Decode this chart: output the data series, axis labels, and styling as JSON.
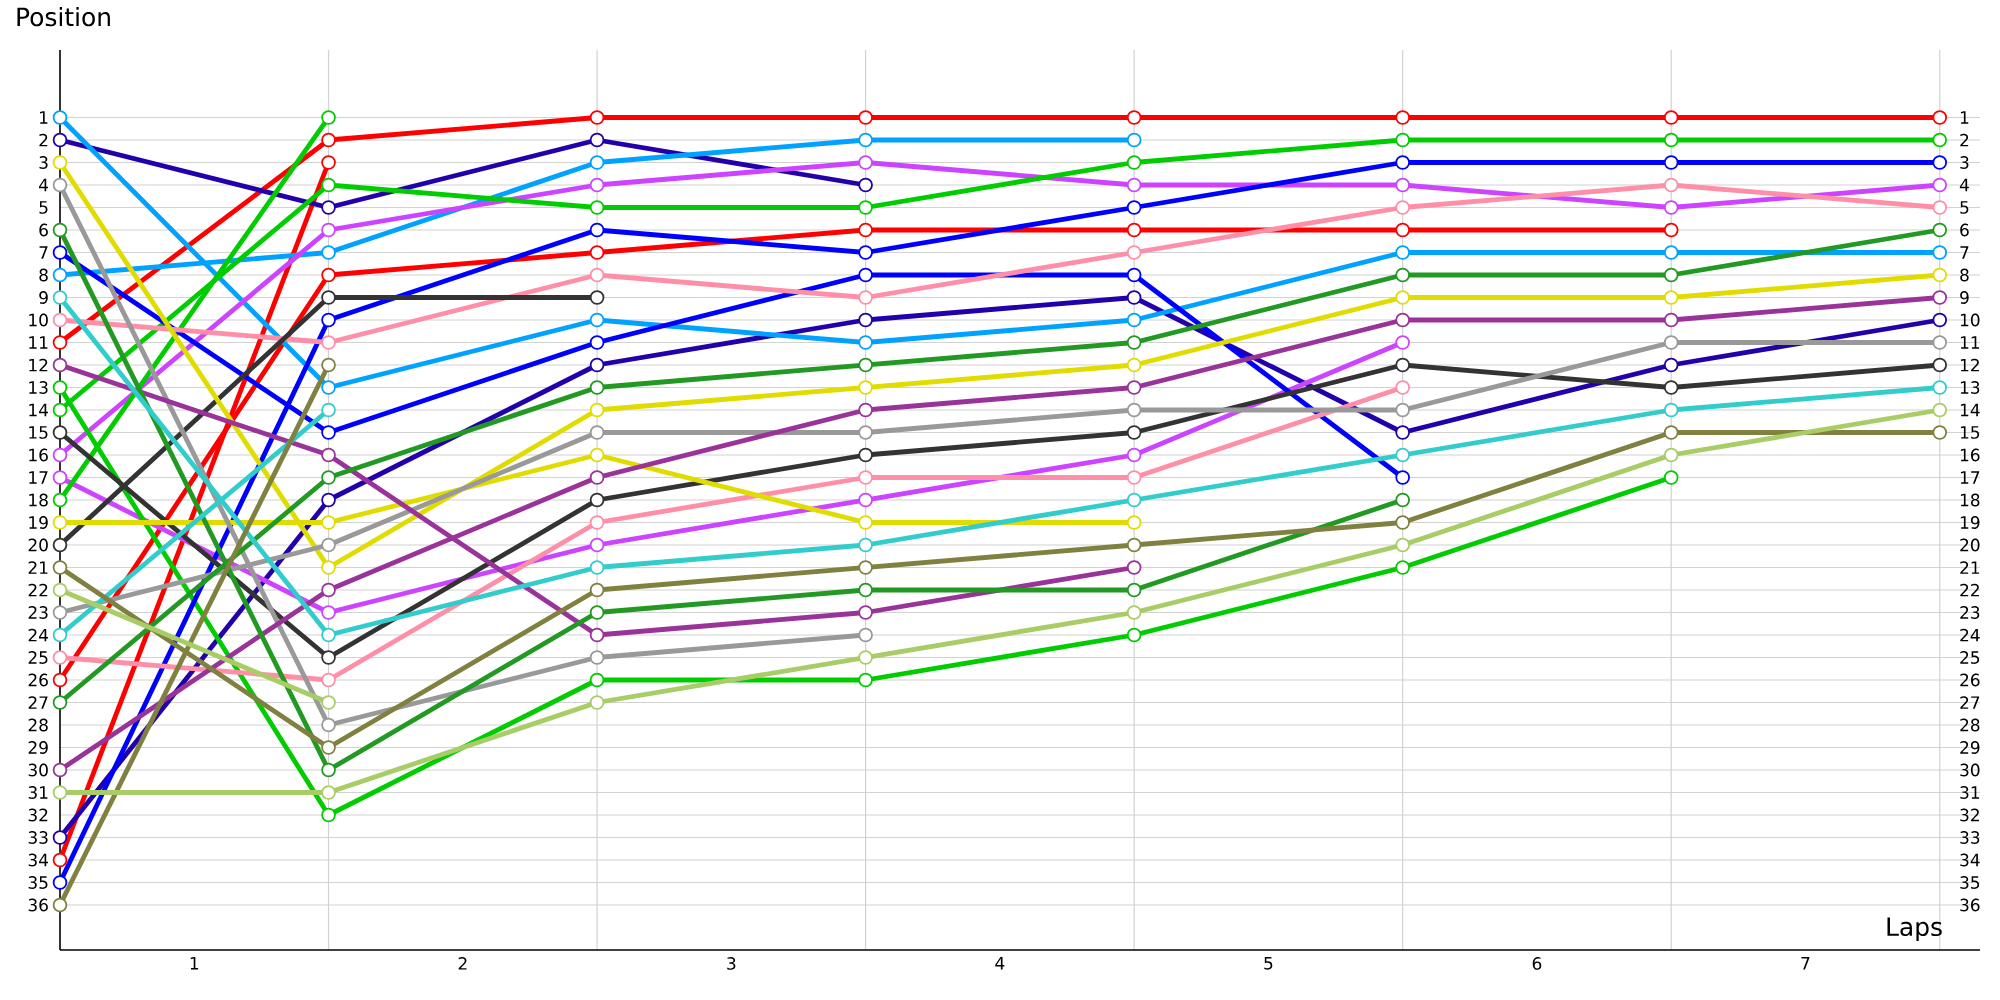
{
  "chart_data": {
    "type": "line",
    "xlabel": "Laps",
    "ylabel": "Position",
    "x": [
      0,
      1,
      2,
      3,
      4,
      5,
      6,
      7
    ],
    "xlim": [
      0,
      7.15
    ],
    "ylim": [
      38,
      -2
    ],
    "xticks": [
      {
        "value": 0.5,
        "label": "1"
      },
      {
        "value": 1.5,
        "label": "2"
      },
      {
        "value": 2.5,
        "label": "3"
      },
      {
        "value": 3.5,
        "label": "4"
      },
      {
        "value": 4.5,
        "label": "5"
      },
      {
        "value": 5.5,
        "label": "6"
      },
      {
        "value": 6.5,
        "label": "7"
      },
      {
        "value": 1,
        "label": null
      },
      {
        "value": 2,
        "label": null
      },
      {
        "value": 3,
        "label": null
      },
      {
        "value": 4,
        "label": null
      },
      {
        "value": 5,
        "label": null
      },
      {
        "value": 6,
        "label": null
      },
      {
        "value": 7,
        "label": null
      }
    ],
    "yticks": [
      1,
      2,
      3,
      4,
      5,
      6,
      7,
      8,
      9,
      10,
      11,
      12,
      13,
      14,
      15,
      16,
      17,
      18,
      19,
      20,
      21,
      22,
      23,
      24,
      25,
      26,
      27,
      28,
      29,
      30,
      31,
      32,
      33,
      34,
      35,
      36
    ],
    "y2lim": [
      38,
      -2
    ],
    "y2ticks": [
      1,
      2,
      3,
      4,
      5,
      6,
      7,
      8,
      9,
      10,
      11,
      12,
      13,
      14,
      15,
      16,
      17,
      18,
      19,
      20,
      21,
      22,
      23,
      24,
      25,
      26,
      27,
      28,
      29,
      30,
      31,
      32,
      33,
      34,
      35,
      36
    ],
    "grid": true,
    "marker": "circle",
    "line_style": "solid",
    "series": [
      {
        "color": "#ff0000",
        "values": [
          11,
          2,
          1,
          1,
          1,
          1,
          1,
          1
        ]
      },
      {
        "color": "#ff0000",
        "values": [
          26,
          8,
          7,
          6,
          6,
          6,
          6,
          null
        ]
      },
      {
        "color": "#ff0000",
        "values": [
          34,
          3,
          null,
          null,
          null,
          null,
          null,
          null
        ]
      },
      {
        "color": "#2200aa",
        "values": [
          2,
          5,
          2,
          4,
          null,
          null,
          null,
          null
        ]
      },
      {
        "color": "#2200aa",
        "values": [
          33,
          18,
          12,
          10,
          9,
          15,
          12,
          10
        ]
      },
      {
        "color": "#00a2ff",
        "values": [
          8,
          7,
          3,
          2,
          2,
          null,
          null,
          null
        ]
      },
      {
        "color": "#00a2ff",
        "values": [
          1,
          13,
          10,
          11,
          10,
          7,
          7,
          7
        ]
      },
      {
        "color": "#cc44ff",
        "values": [
          16,
          6,
          4,
          3,
          4,
          4,
          5,
          4
        ]
      },
      {
        "color": "#cc44ff",
        "values": [
          17,
          23,
          20,
          18,
          16,
          11,
          null,
          null
        ]
      },
      {
        "color": "#00cc00",
        "values": [
          14,
          4,
          5,
          5,
          3,
          2,
          2,
          2
        ]
      },
      {
        "color": "#00cc00",
        "values": [
          18,
          1,
          null,
          null,
          null,
          null,
          null,
          null
        ]
      },
      {
        "color": "#00cc00",
        "values": [
          13,
          32,
          26,
          26,
          24,
          21,
          17,
          null
        ]
      },
      {
        "color": "#0000ff",
        "values": [
          35,
          10,
          6,
          7,
          5,
          3,
          3,
          3
        ]
      },
      {
        "color": "#0000ff",
        "values": [
          7,
          15,
          11,
          8,
          8,
          17,
          null,
          null
        ]
      },
      {
        "color": "#ff8fa8",
        "values": [
          10,
          11,
          8,
          9,
          7,
          5,
          4,
          5
        ]
      },
      {
        "color": "#ff8fa8",
        "values": [
          25,
          26,
          19,
          17,
          17,
          13,
          null,
          null
        ]
      },
      {
        "color": "#333333",
        "values": [
          20,
          9,
          9,
          null,
          null,
          null,
          null,
          null
        ]
      },
      {
        "color": "#333333",
        "values": [
          15,
          25,
          18,
          16,
          15,
          12,
          13,
          12
        ]
      },
      {
        "color": "#e0dc00",
        "values": [
          3,
          21,
          14,
          13,
          12,
          9,
          9,
          8
        ]
      },
      {
        "color": "#e0dc00",
        "values": [
          19,
          19,
          16,
          19,
          19,
          null,
          null,
          null
        ]
      },
      {
        "color": "#999999",
        "values": [
          23,
          20,
          15,
          15,
          14,
          14,
          11,
          11
        ]
      },
      {
        "color": "#999999",
        "values": [
          4,
          28,
          25,
          24,
          null,
          null,
          null,
          null
        ]
      },
      {
        "color": "#993399",
        "values": [
          12,
          16,
          24,
          23,
          21,
          null,
          null,
          null
        ]
      },
      {
        "color": "#993399",
        "values": [
          30,
          22,
          17,
          14,
          13,
          10,
          10,
          9
        ]
      },
      {
        "color": "#229922",
        "values": [
          27,
          17,
          13,
          12,
          11,
          8,
          8,
          6
        ]
      },
      {
        "color": "#229922",
        "values": [
          6,
          30,
          23,
          22,
          22,
          18,
          null,
          null
        ]
      },
      {
        "color": "#33cccc",
        "values": [
          24,
          14,
          null,
          null,
          null,
          null,
          null,
          null
        ]
      },
      {
        "color": "#33cccc",
        "values": [
          9,
          24,
          21,
          20,
          18,
          16,
          14,
          13
        ]
      },
      {
        "color": "#808040",
        "values": [
          36,
          12,
          null,
          null,
          null,
          null,
          null,
          null
        ]
      },
      {
        "color": "#808040",
        "values": [
          21,
          29,
          22,
          21,
          20,
          19,
          15,
          15
        ]
      },
      {
        "color": "#a8cc66",
        "values": [
          31,
          31,
          27,
          25,
          23,
          20,
          16,
          14
        ]
      },
      {
        "color": "#a8cc66",
        "values": [
          22,
          27,
          null,
          null,
          null,
          null,
          null,
          null
        ]
      }
    ]
  }
}
